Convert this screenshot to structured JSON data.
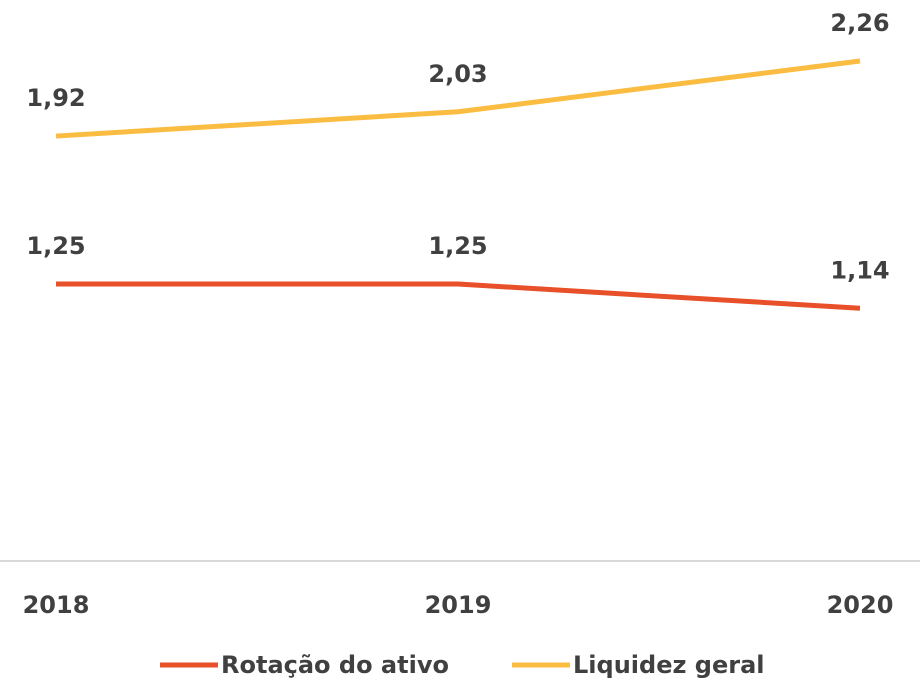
{
  "chart_data": {
    "type": "line",
    "categories": [
      "2018",
      "2019",
      "2020"
    ],
    "series": [
      {
        "name": "Rotação do ativo",
        "color": "#e8502a",
        "values": [
          1.25,
          1.25,
          1.14
        ],
        "value_labels": [
          "1,25",
          "1,25",
          "1,14"
        ]
      },
      {
        "name": "Liquidez geral",
        "color": "#fbbc42",
        "values": [
          1.92,
          2.03,
          2.26
        ],
        "value_labels": [
          "1,92",
          "2,03",
          "2,26"
        ]
      }
    ],
    "ylim": [
      0,
      2.5
    ],
    "legend": "bottom"
  }
}
